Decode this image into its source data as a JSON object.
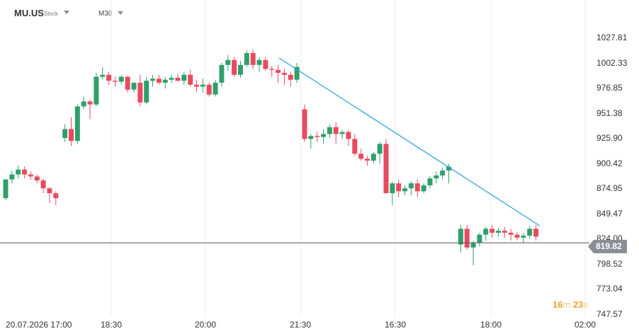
{
  "header": {
    "symbol": "MU.US",
    "symbol_type": "Stock",
    "timeframe": "M30"
  },
  "current_price_label": "819.82",
  "countdown": {
    "minutes": "16",
    "m_unit": "m",
    "seconds": "23",
    "s_unit": "s"
  },
  "colors": {
    "up": "#2fa06b",
    "down": "#e84a5f",
    "trendline": "#2a9fe0",
    "price_line": "#555555",
    "price_tag": "#8a8f96"
  },
  "chart_data": {
    "type": "candlestick",
    "y_ticks": [
      "1027.81",
      "1002.33",
      "976.85",
      "951.38",
      "925.90",
      "900.42",
      "874.95",
      "849.47",
      "824.00",
      "798.52",
      "773.04",
      "747.57"
    ],
    "ylim": [
      747.57,
      1027.81
    ],
    "x_labels": [
      "20.07.2026 17:00",
      "18:30",
      "20:00",
      "21:30",
      "16:30",
      "18:00",
      "02:00"
    ],
    "current_price": 819.82,
    "candles": [
      [
        865,
        884,
        863,
        884
      ],
      [
        884,
        893,
        880,
        889
      ],
      [
        889,
        898,
        885,
        894
      ],
      [
        894,
        897,
        885,
        889
      ],
      [
        889,
        892,
        884,
        887
      ],
      [
        887,
        889,
        880,
        883
      ],
      [
        883,
        885,
        870,
        875
      ],
      [
        875,
        876,
        860,
        870
      ],
      [
        870,
        872,
        858,
        865
      ],
      [
        926,
        940,
        922,
        935
      ],
      [
        935,
        947,
        918,
        923
      ],
      [
        923,
        960,
        920,
        958
      ],
      [
        958,
        968,
        955,
        963
      ],
      [
        963,
        965,
        945,
        960
      ],
      [
        960,
        992,
        958,
        988
      ],
      [
        988,
        998,
        985,
        990
      ],
      [
        990,
        993,
        980,
        984
      ],
      [
        984,
        988,
        978,
        983
      ],
      [
        983,
        990,
        980,
        988
      ],
      [
        988,
        989,
        972,
        975
      ],
      [
        975,
        982,
        972,
        982
      ],
      [
        982,
        990,
        958,
        962
      ],
      [
        962,
        988,
        960,
        984
      ],
      [
        984,
        990,
        978,
        986
      ],
      [
        986,
        990,
        980,
        982
      ],
      [
        982,
        988,
        976,
        985
      ],
      [
        985,
        990,
        982,
        987
      ],
      [
        987,
        991,
        983,
        984
      ],
      [
        984,
        993,
        980,
        990
      ],
      [
        990,
        995,
        978,
        980
      ],
      [
        980,
        985,
        973,
        978
      ],
      [
        978,
        986,
        972,
        980
      ],
      [
        980,
        982,
        968,
        970
      ],
      [
        970,
        985,
        968,
        982
      ],
      [
        982,
        1002,
        978,
        1000
      ],
      [
        1000,
        1010,
        994,
        1005
      ],
      [
        1005,
        1008,
        988,
        990
      ],
      [
        990,
        1004,
        987,
        1000
      ],
      [
        1000,
        1015,
        998,
        1012
      ],
      [
        1012,
        1016,
        996,
        1000
      ],
      [
        1000,
        1008,
        993,
        1005
      ],
      [
        1005,
        1008,
        994,
        996
      ],
      [
        996,
        999,
        988,
        995
      ],
      [
        995,
        1000,
        982,
        992
      ],
      [
        992,
        996,
        980,
        990
      ],
      [
        990,
        993,
        978,
        985
      ],
      [
        985,
        1002,
        982,
        998
      ],
      [
        955,
        960,
        922,
        925
      ],
      [
        925,
        930,
        915,
        928
      ],
      [
        928,
        932,
        922,
        927
      ],
      [
        927,
        935,
        920,
        930
      ],
      [
        930,
        940,
        926,
        937
      ],
      [
        937,
        942,
        920,
        930
      ],
      [
        930,
        934,
        925,
        932
      ],
      [
        932,
        934,
        918,
        925
      ],
      [
        925,
        930,
        908,
        910
      ],
      [
        910,
        915,
        903,
        905
      ],
      [
        905,
        908,
        898,
        903
      ],
      [
        903,
        912,
        900,
        910
      ],
      [
        910,
        922,
        900,
        920
      ],
      [
        920,
        925,
        870,
        870
      ],
      [
        870,
        882,
        858,
        880
      ],
      [
        880,
        884,
        866,
        872
      ],
      [
        872,
        878,
        868,
        875
      ],
      [
        875,
        882,
        868,
        880
      ],
      [
        880,
        884,
        866,
        872
      ],
      [
        872,
        880,
        870,
        878
      ],
      [
        878,
        887,
        875,
        885
      ],
      [
        885,
        892,
        880,
        888
      ],
      [
        888,
        896,
        884,
        893
      ],
      [
        893,
        900,
        880,
        897
      ],
      [
        818,
        838,
        810,
        834
      ],
      [
        834,
        838,
        813,
        815
      ],
      [
        815,
        822,
        797,
        820
      ],
      [
        820,
        830,
        816,
        828
      ],
      [
        828,
        836,
        822,
        834
      ],
      [
        834,
        838,
        825,
        830
      ],
      [
        830,
        835,
        826,
        832
      ],
      [
        832,
        836,
        825,
        830
      ],
      [
        830,
        834,
        822,
        828
      ],
      [
        828,
        831,
        822,
        825
      ],
      [
        825,
        830,
        820,
        827
      ],
      [
        827,
        837,
        824,
        834
      ],
      [
        834,
        838,
        822,
        826
      ]
    ],
    "trendline": {
      "from": [
        990,
        1007
      ],
      "to": [
        1106,
        837
      ]
    }
  }
}
